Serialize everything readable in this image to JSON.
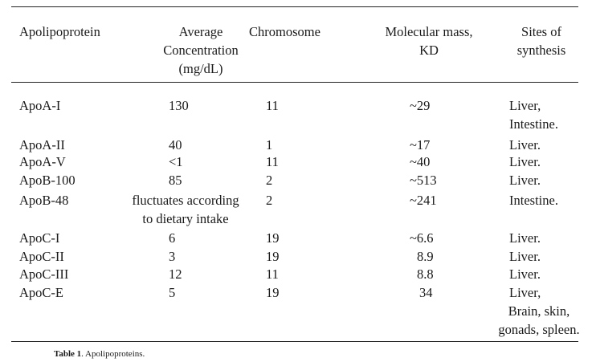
{
  "table": {
    "headers": {
      "apolipoprotein": "Apolipoprotein",
      "concentration": [
        "Average",
        "Concentration",
        "(mg/dL)"
      ],
      "chromosome": "Chromosome",
      "molecular_mass": [
        "Molecular mass,",
        "KD"
      ],
      "sites": [
        "Sites of",
        "synthesis"
      ]
    },
    "rows": [
      {
        "name": "ApoA-I",
        "concentration": [
          "130"
        ],
        "chromosome": "11",
        "mass": "~29",
        "sites": [
          "Liver,",
          "Intestine."
        ]
      },
      {
        "name": "ApoA-II",
        "concentration": [
          "40"
        ],
        "chromosome": "1",
        "mass": "~17",
        "sites": [
          "Liver."
        ]
      },
      {
        "name": "ApoA-V",
        "concentration": [
          "<1"
        ],
        "chromosome": "11",
        "mass": "~40",
        "sites": [
          "Liver."
        ]
      },
      {
        "name": "ApoB-100",
        "concentration": [
          "85"
        ],
        "chromosome": "2",
        "mass": "~513",
        "sites": [
          "Liver."
        ]
      },
      {
        "name": "ApoB-48",
        "concentration": [
          "fluctuates according",
          "to dietary intake"
        ],
        "chromosome": "2",
        "mass": "~241",
        "sites": [
          "Intestine."
        ]
      },
      {
        "name": "ApoC-I",
        "concentration": [
          "6"
        ],
        "chromosome": "19",
        "mass": "~6.6",
        "sites": [
          "Liver."
        ]
      },
      {
        "name": "ApoC-II",
        "concentration": [
          "3"
        ],
        "chromosome": "19",
        "mass": "8.9",
        "sites": [
          "Liver."
        ]
      },
      {
        "name": "ApoC-III",
        "concentration": [
          "12"
        ],
        "chromosome": "11",
        "mass": "8.8",
        "sites": [
          "Liver."
        ]
      },
      {
        "name": "ApoC-E",
        "concentration": [
          "5"
        ],
        "chromosome": "19",
        "mass": "34",
        "sites": [
          "Liver,",
          "Brain, skin,",
          "gonads, spleen."
        ]
      }
    ]
  },
  "caption": {
    "label": "Table 1",
    "text": ". Apolipoproteins."
  }
}
